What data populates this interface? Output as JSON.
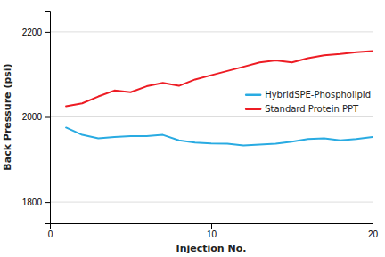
{
  "chart_data": {
    "type": "line",
    "x": [
      1,
      2,
      3,
      4,
      5,
      6,
      7,
      8,
      9,
      10,
      11,
      12,
      13,
      14,
      15,
      16,
      17,
      18,
      19,
      20
    ],
    "series": [
      {
        "name": "HybridSPE-Phospholipid",
        "color": "#29ABE2",
        "values": [
          1975,
          1958,
          1950,
          1953,
          1955,
          1955,
          1958,
          1945,
          1940,
          1938,
          1937,
          1933,
          1935,
          1937,
          1942,
          1948,
          1950,
          1945,
          1948,
          1953
        ]
      },
      {
        "name": "Standard Protein PPT",
        "color": "#ED1C24",
        "values": [
          2025,
          2032,
          2048,
          2062,
          2058,
          2072,
          2080,
          2073,
          2088,
          2098,
          2108,
          2118,
          2128,
          2133,
          2128,
          2138,
          2145,
          2148,
          2152,
          2155
        ]
      }
    ],
    "xlabel": "Injection No.",
    "ylabel": "Back Pressure (psi)",
    "xlim": [
      0,
      20
    ],
    "ylim": [
      1750,
      2250
    ],
    "xticks": [
      0,
      10,
      20
    ],
    "yticks": [
      1800,
      2000,
      2200
    ],
    "grid": true,
    "legend": "right"
  }
}
